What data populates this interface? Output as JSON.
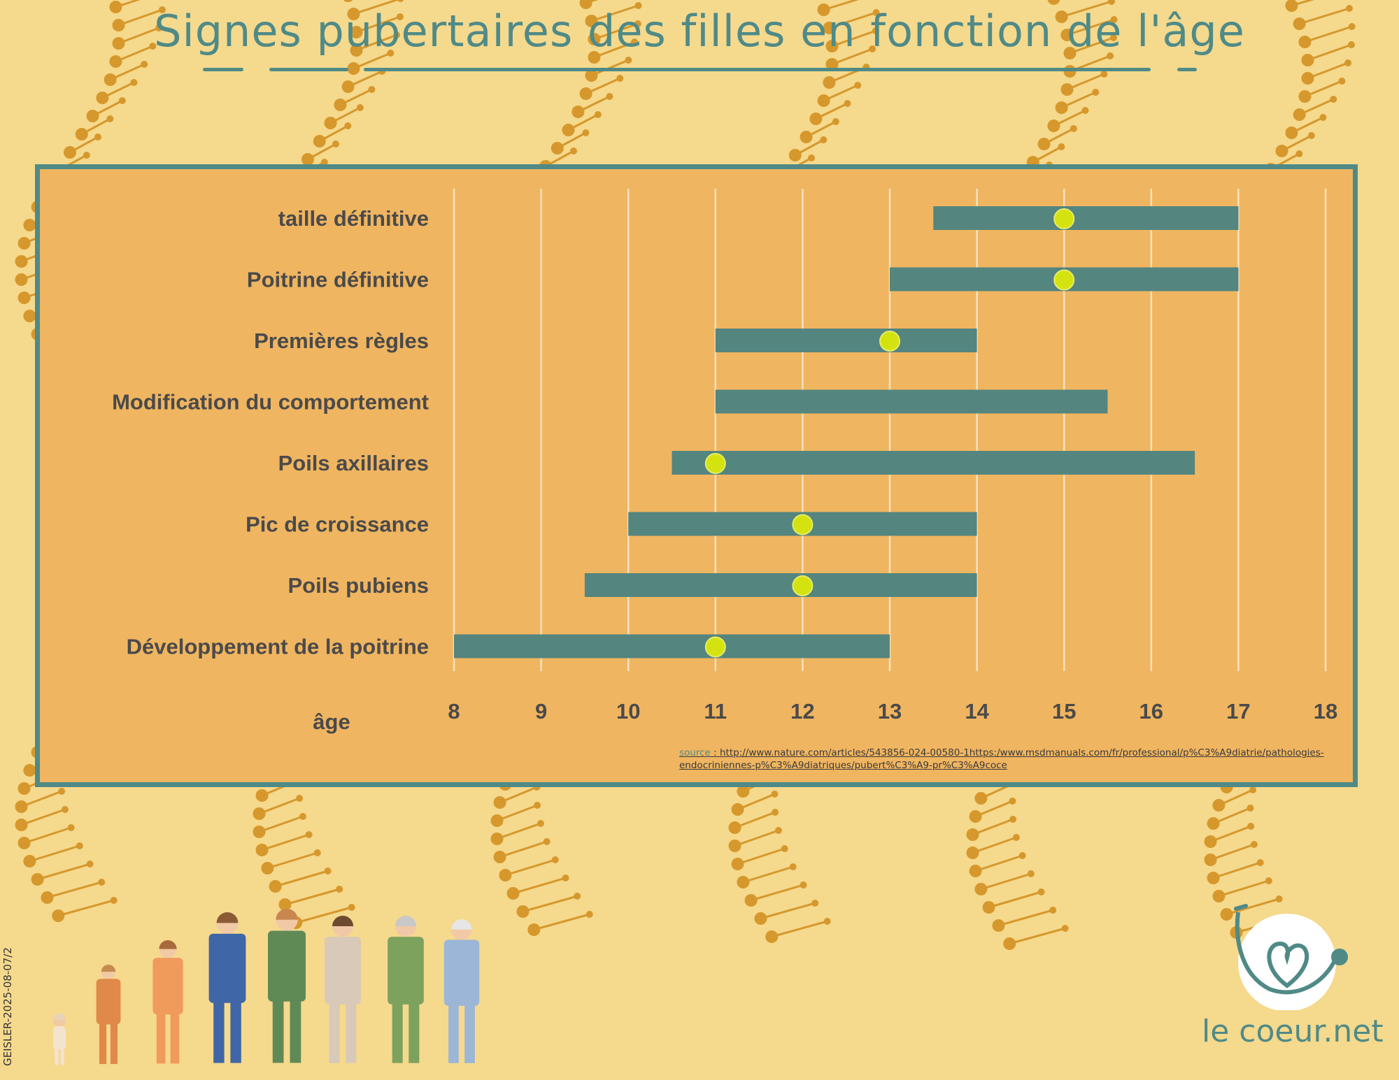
{
  "title": "Signes pubertaires des filles en fonction de l'âge",
  "source": {
    "label": "source",
    "text": " : http://www.nature.com/articles/543856-024-00580-1https:/www.msdmanuals.com/fr/professional/p%C3%A9diatrie/pathologies-endocriniennes-p%C3%A9diatriques/pubert%C3%A9-pr%C3%A9coce"
  },
  "document_code": "GEISLER-2025-08-07/2",
  "brand": "le coeur.net",
  "colors": {
    "bar": "#54857f",
    "marker": "#d4e30f",
    "label_text": "#4a4a4a",
    "panel": "#f0b560",
    "frame": "#4f8a87",
    "background": "#f5d98d",
    "dna": "#d6982c"
  },
  "chart_data": {
    "type": "bar",
    "orientation": "horizontal-range",
    "xlabel": "âge",
    "xlim": [
      8,
      18
    ],
    "x_ticks": [
      8,
      9,
      10,
      11,
      12,
      13,
      14,
      15,
      16,
      17,
      18
    ],
    "grid": "vertical",
    "categories": [
      "taille définitive",
      "Poitrine définitive",
      "Premières règles",
      "Modification du comportement",
      "Poils axillaires",
      "Pic de croissance",
      "Poils pubiens",
      "Développement de la poitrine"
    ],
    "ranges": [
      {
        "start": 13.5,
        "end": 17,
        "marker": 15
      },
      {
        "start": 13,
        "end": 17,
        "marker": 15
      },
      {
        "start": 11,
        "end": 14,
        "marker": 13
      },
      {
        "start": 11,
        "end": 15.5,
        "marker": null
      },
      {
        "start": 10.5,
        "end": 16.5,
        "marker": 11
      },
      {
        "start": 10,
        "end": 14,
        "marker": 12
      },
      {
        "start": 9.5,
        "end": 14,
        "marker": 12
      },
      {
        "start": 8,
        "end": 13,
        "marker": 11
      }
    ]
  }
}
